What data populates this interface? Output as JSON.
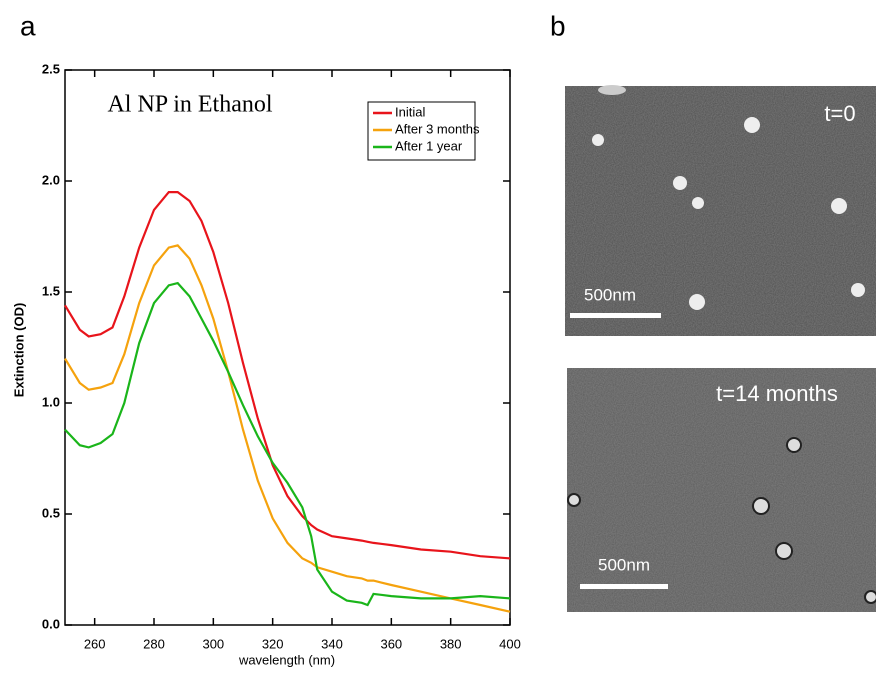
{
  "panel_labels": [
    "a",
    "b"
  ],
  "chart_data": {
    "type": "line",
    "title": "Al NP in Ethanol",
    "x_label": "wavelength (nm)",
    "y_label": "Extinction (OD)",
    "x": [
      250,
      255,
      258,
      262,
      266,
      270,
      275,
      280,
      285,
      288,
      292,
      296,
      300,
      305,
      310,
      315,
      320,
      325,
      330,
      333,
      335,
      340,
      345,
      350,
      352,
      354,
      360,
      370,
      380,
      390,
      400
    ],
    "series": [
      {
        "name": "Initial",
        "color": "#e8141b",
        "values": [
          1.44,
          1.33,
          1.3,
          1.31,
          1.34,
          1.48,
          1.7,
          1.87,
          1.95,
          1.95,
          1.91,
          1.82,
          1.68,
          1.45,
          1.18,
          0.93,
          0.72,
          0.58,
          0.49,
          0.45,
          0.43,
          0.4,
          0.39,
          0.38,
          0.375,
          0.37,
          0.36,
          0.34,
          0.33,
          0.31,
          0.3
        ]
      },
      {
        "name": "After 3 months",
        "color": "#f5a20d",
        "values": [
          1.2,
          1.09,
          1.06,
          1.07,
          1.09,
          1.22,
          1.45,
          1.62,
          1.7,
          1.71,
          1.65,
          1.53,
          1.38,
          1.14,
          0.88,
          0.65,
          0.48,
          0.37,
          0.3,
          0.28,
          0.26,
          0.24,
          0.22,
          0.21,
          0.2,
          0.2,
          0.18,
          0.15,
          0.12,
          0.09,
          0.06
        ]
      },
      {
        "name": "After 1 year",
        "color": "#1ab51a",
        "values": [
          0.88,
          0.81,
          0.8,
          0.82,
          0.86,
          1.0,
          1.27,
          1.45,
          1.53,
          1.54,
          1.48,
          1.38,
          1.28,
          1.14,
          0.99,
          0.85,
          0.73,
          0.64,
          0.53,
          0.4,
          0.25,
          0.15,
          0.11,
          0.1,
          0.09,
          0.14,
          0.13,
          0.12,
          0.12,
          0.13,
          0.12
        ]
      }
    ],
    "xlim": [
      250,
      400
    ],
    "ylim": [
      0,
      2.5
    ],
    "xticks": [
      260,
      280,
      300,
      320,
      340,
      360,
      380,
      400
    ],
    "yticks": [
      {
        "value": 0,
        "label": "0.0"
      },
      0.5,
      {
        "value": 1,
        "label": "1.0"
      },
      1.5,
      {
        "value": 2,
        "label": "2.0"
      },
      2.5
    ],
    "legend": "upper right",
    "grid": false
  },
  "images": [
    {
      "label": "t=0",
      "scale_bar": "500nm"
    },
    {
      "label": "t=14 months",
      "scale_bar": "500nm"
    }
  ]
}
